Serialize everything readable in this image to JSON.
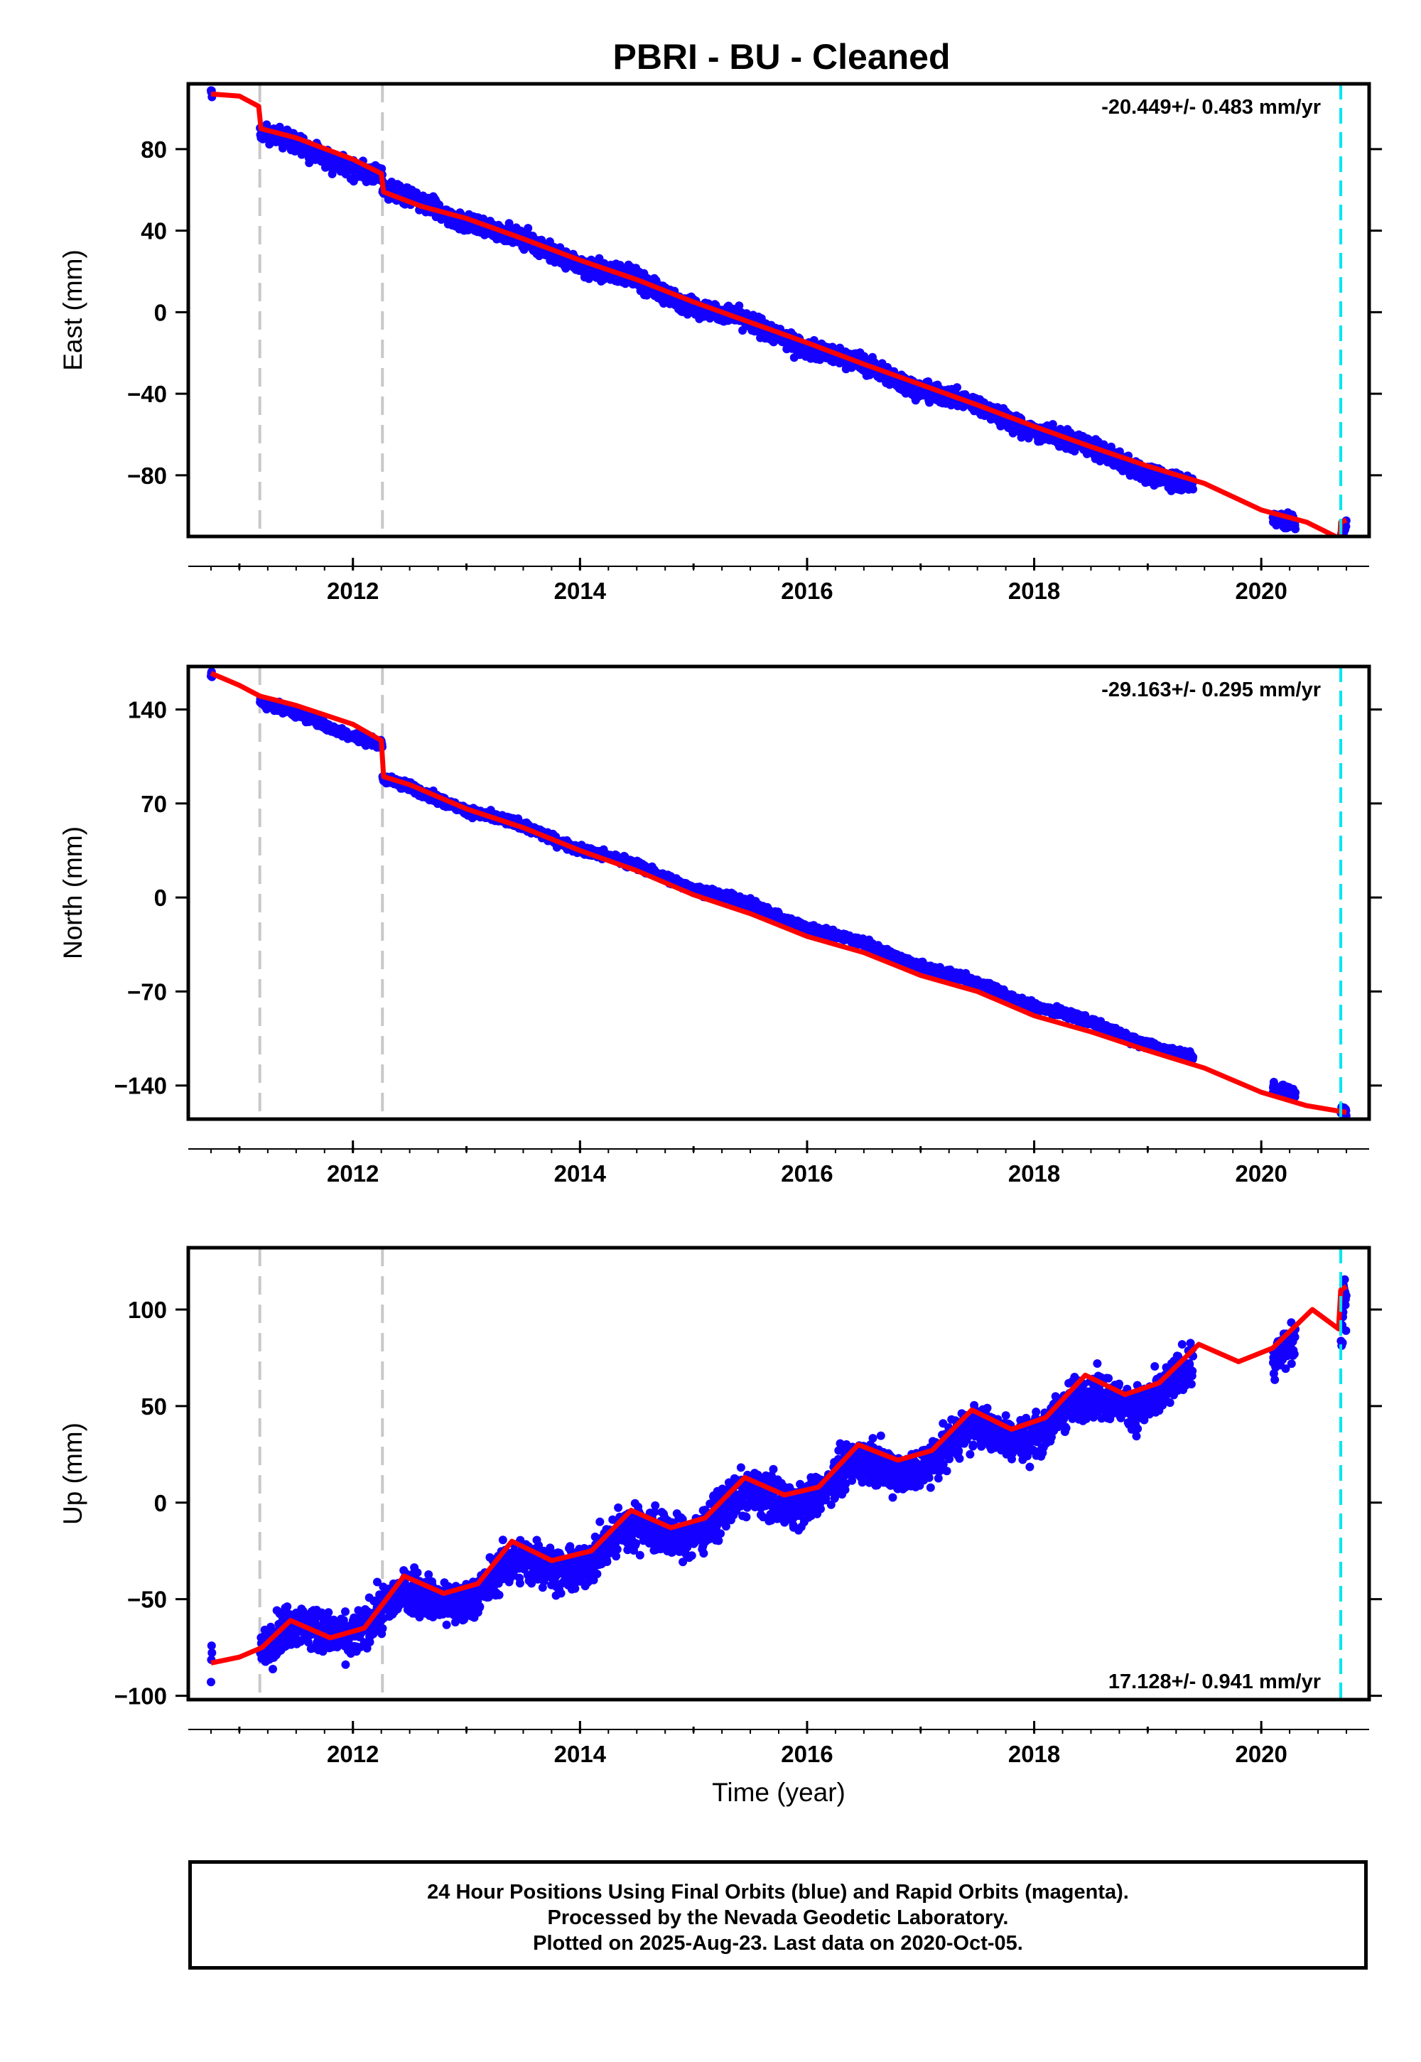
{
  "chart_data": {
    "type": "scatter",
    "title": "PBRI  - BU - Cleaned",
    "xlabel": "Time (year)",
    "xlim": [
      2010.55,
      2020.95
    ],
    "xticks": [
      2012,
      2014,
      2016,
      2018,
      2020
    ],
    "equipment_changes": [
      2011.18,
      2012.26
    ],
    "last_data_marker": 2020.7,
    "series_colors": {
      "final_orbits": "#1400ff",
      "model": "#ff0000",
      "equipment": "#c8c8c8",
      "last": "#00e6f0"
    },
    "panels": [
      {
        "name": "east",
        "ylabel": "East (mm)",
        "ylim": [
          -110,
          112
        ],
        "yticks": [
          -80,
          -40,
          0,
          40,
          80
        ],
        "rate": "-20.449+/- 0.483 mm/yr",
        "rate_position": "top-right",
        "trend": {
          "x0": 2010.75,
          "y0": 107,
          "slope": -20.449
        },
        "offsets": [
          {
            "t": 2011.18,
            "dy": -10
          },
          {
            "t": 2012.26,
            "dy": -6
          },
          {
            "t": 2020.72,
            "dy": 8
          }
        ],
        "seasonal_amp": 1.5,
        "noise": 2.2,
        "data_gaps": [
          [
            2010.76,
            2011.18
          ],
          [
            2019.4,
            2020.1
          ],
          [
            2020.3,
            2020.7
          ]
        ],
        "model": [
          [
            2010.75,
            107.0
          ],
          [
            2011.0,
            106.0
          ],
          [
            2011.17,
            101.0
          ],
          [
            2011.19,
            90.0
          ],
          [
            2011.5,
            85.5
          ],
          [
            2012.0,
            75.0
          ],
          [
            2012.25,
            68.0
          ],
          [
            2012.27,
            59.0
          ],
          [
            2012.6,
            52.0
          ],
          [
            2013.0,
            46.0
          ],
          [
            2013.5,
            36.0
          ],
          [
            2014.0,
            25.5
          ],
          [
            2014.5,
            16.0
          ],
          [
            2015.0,
            5.0
          ],
          [
            2015.5,
            -5.0
          ],
          [
            2016.0,
            -15.0
          ],
          [
            2016.5,
            -25.5
          ],
          [
            2017.0,
            -35.5
          ],
          [
            2017.5,
            -45.5
          ],
          [
            2018.0,
            -56.0
          ],
          [
            2018.5,
            -66.0
          ],
          [
            2019.0,
            -75.5
          ],
          [
            2019.5,
            -84.0
          ],
          [
            2020.0,
            -97.0
          ],
          [
            2020.4,
            -103.0
          ],
          [
            2020.69,
            -111.0
          ],
          [
            2020.7,
            -103.0
          ],
          [
            2020.75,
            -102.0
          ]
        ]
      },
      {
        "name": "north",
        "ylabel": "North (mm)",
        "ylim": [
          -165,
          172
        ],
        "yticks": [
          -140,
          -70,
          0,
          70,
          140
        ],
        "rate": "-29.163+/- 0.295 mm/yr",
        "rate_position": "top-right",
        "trend": {
          "x0": 2010.75,
          "y0": 167,
          "slope": -29.163
        },
        "offsets": [
          {
            "t": 2011.18,
            "dy": -9
          },
          {
            "t": 2012.26,
            "dy": -26
          }
        ],
        "seasonal_amp": 1.5,
        "noise": 1.6,
        "data_gaps": [
          [
            2010.76,
            2011.18
          ],
          [
            2019.4,
            2020.1
          ],
          [
            2020.3,
            2020.7
          ]
        ],
        "model": [
          [
            2010.75,
            167.0
          ],
          [
            2011.0,
            158.0
          ],
          [
            2011.18,
            150.0
          ],
          [
            2011.5,
            143.0
          ],
          [
            2012.0,
            129.0
          ],
          [
            2012.25,
            117.0
          ],
          [
            2012.27,
            90.0
          ],
          [
            2012.5,
            84.0
          ],
          [
            2013.0,
            66.0
          ],
          [
            2013.5,
            52.0
          ],
          [
            2014.0,
            35.0
          ],
          [
            2014.5,
            20.0
          ],
          [
            2015.0,
            2.0
          ],
          [
            2015.5,
            -12.0
          ],
          [
            2016.0,
            -29.0
          ],
          [
            2016.5,
            -41.0
          ],
          [
            2017.0,
            -58.0
          ],
          [
            2017.5,
            -70.0
          ],
          [
            2018.0,
            -88.0
          ],
          [
            2018.5,
            -100.0
          ],
          [
            2019.0,
            -114.0
          ],
          [
            2019.5,
            -127.0
          ],
          [
            2020.0,
            -145.0
          ],
          [
            2020.4,
            -155.0
          ],
          [
            2020.75,
            -160.0
          ]
        ]
      },
      {
        "name": "up",
        "ylabel": "Up (mm)",
        "ylim": [
          -102,
          132
        ],
        "yticks": [
          -100,
          -50,
          0,
          50,
          100
        ],
        "rate": "17.128+/- 0.941 mm/yr",
        "rate_position": "bottom-right",
        "trend": {
          "x0": 2010.75,
          "y0": -83,
          "slope": 17.128
        },
        "offsets": [
          {
            "t": 2020.72,
            "dy": 20
          }
        ],
        "seasonal_amp": 7,
        "noise": 5.5,
        "data_gaps": [
          [
            2010.76,
            2011.18
          ],
          [
            2019.4,
            2020.1
          ],
          [
            2020.3,
            2020.7
          ]
        ],
        "model": [
          [
            2010.75,
            -83.0
          ],
          [
            2011.0,
            -80.0
          ],
          [
            2011.2,
            -75.0
          ],
          [
            2011.45,
            -61.0
          ],
          [
            2011.8,
            -70.0
          ],
          [
            2012.1,
            -65.0
          ],
          [
            2012.45,
            -38.0
          ],
          [
            2012.8,
            -47.0
          ],
          [
            2013.1,
            -42.0
          ],
          [
            2013.4,
            -20.0
          ],
          [
            2013.75,
            -30.0
          ],
          [
            2014.1,
            -25.0
          ],
          [
            2014.45,
            -4.0
          ],
          [
            2014.8,
            -13.0
          ],
          [
            2015.1,
            -8.0
          ],
          [
            2015.45,
            13.0
          ],
          [
            2015.8,
            4.0
          ],
          [
            2016.1,
            8.0
          ],
          [
            2016.45,
            30.0
          ],
          [
            2016.8,
            22.0
          ],
          [
            2017.1,
            27.0
          ],
          [
            2017.45,
            48.0
          ],
          [
            2017.8,
            38.0
          ],
          [
            2018.1,
            44.0
          ],
          [
            2018.45,
            66.0
          ],
          [
            2018.8,
            56.0
          ],
          [
            2019.1,
            62.0
          ],
          [
            2019.45,
            82.0
          ],
          [
            2019.8,
            73.0
          ],
          [
            2020.1,
            80.0
          ],
          [
            2020.45,
            100.0
          ],
          [
            2020.68,
            90.0
          ],
          [
            2020.7,
            110.0
          ],
          [
            2020.75,
            112.0
          ]
        ]
      }
    ]
  },
  "footer": {
    "line1": "24 Hour Positions Using Final Orbits (blue) and Rapid Orbits (magenta).",
    "line2": "Processed by the Nevada Geodetic Laboratory.",
    "line3": "Plotted on 2025-Aug-23. Last data on 2020-Oct-05."
  }
}
